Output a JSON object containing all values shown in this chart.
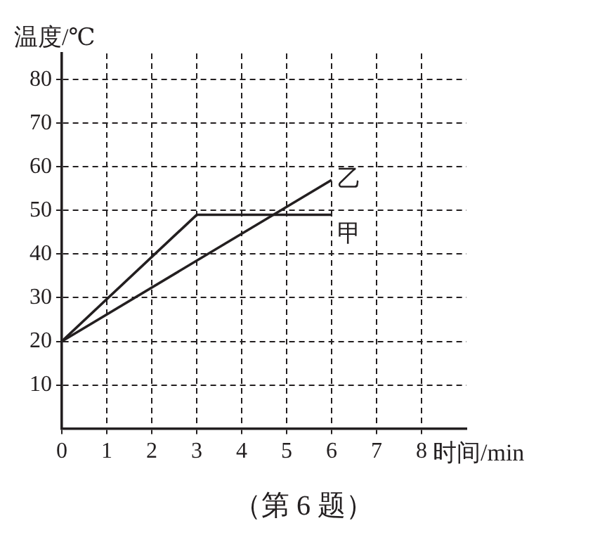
{
  "chart_data": {
    "type": "line",
    "xlabel": "时间/min",
    "ylabel": "温度/℃",
    "annotations": [
      "（第 6 题）"
    ],
    "xlim": [
      0,
      9
    ],
    "xticks": [
      0,
      1,
      2,
      3,
      4,
      5,
      6,
      7,
      8
    ],
    "ylim": [
      0,
      86
    ],
    "yticks": [
      10,
      20,
      30,
      40,
      50,
      60,
      70,
      80
    ],
    "grid": true,
    "legend": false,
    "marker": "none",
    "line_style": "solid",
    "series": [
      {
        "name": "甲",
        "color": "#231f20",
        "x": [
          0,
          3,
          6
        ],
        "values": [
          20,
          49,
          49
        ]
      },
      {
        "name": "乙",
        "color": "#231f20",
        "x": [
          0,
          6
        ],
        "values": [
          20,
          57
        ]
      }
    ]
  }
}
